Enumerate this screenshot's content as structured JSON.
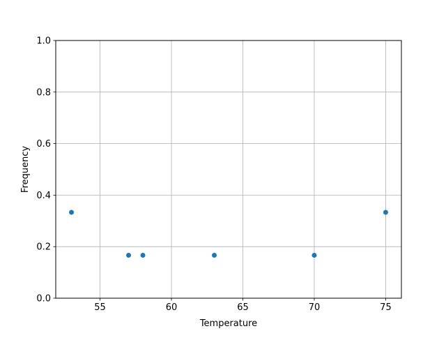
{
  "chart_data": {
    "type": "scatter",
    "title": "",
    "xlabel": "Temperature",
    "ylabel": "Frequency",
    "xlim": [
      51.9,
      76.1
    ],
    "ylim": [
      0.0,
      1.0
    ],
    "xticks": [
      55,
      60,
      65,
      70,
      75
    ],
    "xtick_labels": [
      "55",
      "60",
      "65",
      "70",
      "75"
    ],
    "yticks": [
      0.0,
      0.2,
      0.4,
      0.6,
      0.8,
      1.0
    ],
    "ytick_labels": [
      "0.0",
      "0.2",
      "0.4",
      "0.6",
      "0.8",
      "1.0"
    ],
    "grid": true,
    "color": "#1f77b4",
    "points": [
      {
        "x": 53,
        "y": 0.3333
      },
      {
        "x": 57,
        "y": 0.1667
      },
      {
        "x": 58,
        "y": 0.1667
      },
      {
        "x": 63,
        "y": 0.1667
      },
      {
        "x": 70,
        "y": 0.1667
      },
      {
        "x": 75,
        "y": 0.3333
      }
    ]
  }
}
